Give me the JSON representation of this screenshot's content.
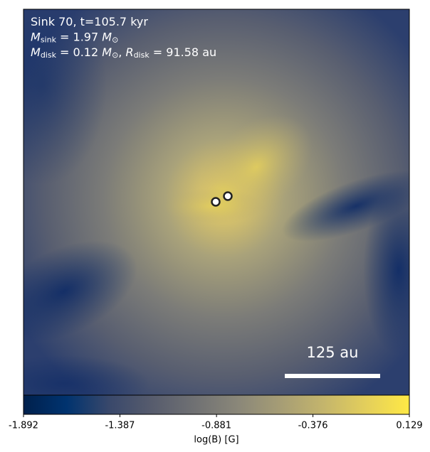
{
  "chart_data": {
    "type": "image",
    "annotations": [
      [
        {
          "text": "Sink 70, t=105.7 kyr",
          "style": "normal"
        }
      ],
      [
        {
          "text": "M",
          "style": "italic"
        },
        {
          "text": "sink",
          "style": "sub"
        },
        {
          "text": " = 1.97 ",
          "style": "normal"
        },
        {
          "text": "M",
          "style": "italic"
        },
        {
          "text": "⊙",
          "style": "sub"
        }
      ],
      [
        {
          "text": "M",
          "style": "italic"
        },
        {
          "text": "disk",
          "style": "sub"
        },
        {
          "text": " = 0.12 ",
          "style": "normal"
        },
        {
          "text": "M",
          "style": "italic"
        },
        {
          "text": "⊙",
          "style": "sub"
        },
        {
          "text": ", ",
          "style": "normal"
        },
        {
          "text": "R",
          "style": "italic"
        },
        {
          "text": "disk",
          "style": "sub"
        },
        {
          "text": " = 91.58 au",
          "style": "normal"
        }
      ]
    ],
    "scale_bar_label": "125 au",
    "colorbar": {
      "label": "log(B) [G]",
      "colormap": "cividis",
      "xlim": [
        -1.892,
        0.129
      ],
      "xticks": [
        -1.892,
        -1.387,
        -0.881,
        -0.376,
        0.129
      ]
    }
  }
}
